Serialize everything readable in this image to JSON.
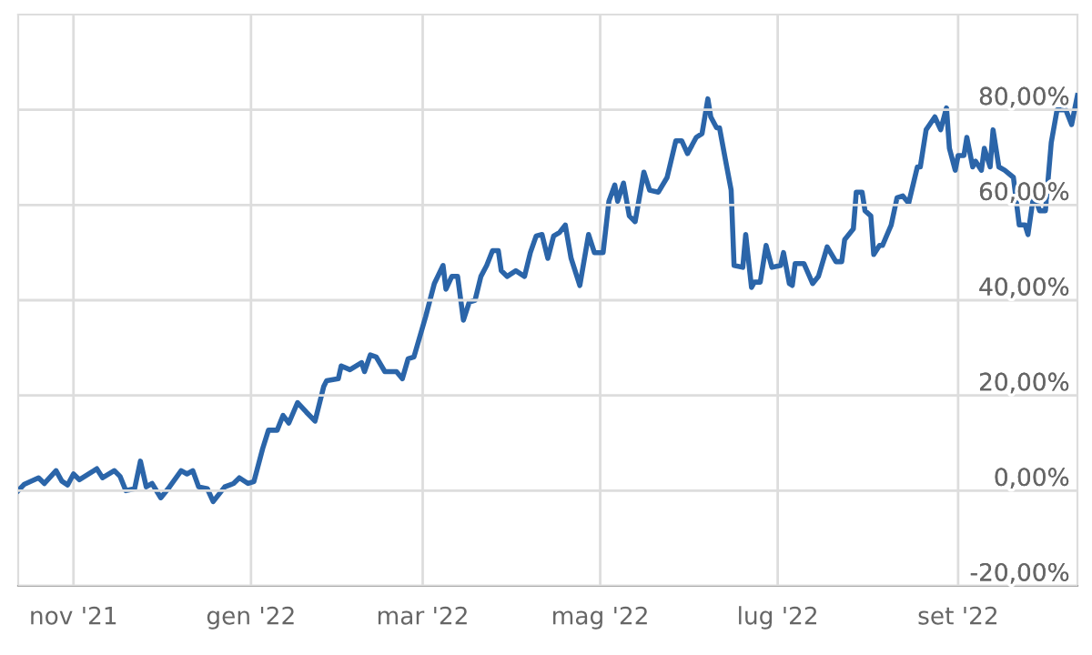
{
  "chart_data": {
    "type": "line",
    "color": "#2b65a9",
    "line_style": "solid",
    "marker": "none",
    "grid": true,
    "legend": false,
    "xlim": [
      "2021-10-13",
      "2022-10-12"
    ],
    "xticks": [
      {
        "value": "2021-11-01",
        "label": "nov '21"
      },
      {
        "value": "2022-01-01",
        "label": "gen '22"
      },
      {
        "value": "2022-03-01",
        "label": "mar '22"
      },
      {
        "value": "2022-05-01",
        "label": "mag '22"
      },
      {
        "value": "2022-07-01",
        "label": "lug '22"
      },
      {
        "value": "2022-09-01",
        "label": "set '22"
      }
    ],
    "ylim": [
      -20,
      100
    ],
    "yticks": [
      {
        "value": -20,
        "label": "-20,00%"
      },
      {
        "value": 0,
        "label": "0,00%"
      },
      {
        "value": 20,
        "label": "20,00%"
      },
      {
        "value": 40,
        "label": "40,00%"
      },
      {
        "value": 60,
        "label": "60,00%"
      },
      {
        "value": 80,
        "label": "80,00%"
      }
    ],
    "x": [
      "2021-10-13",
      "2021-10-15",
      "2021-10-20",
      "2021-10-22",
      "2021-10-26",
      "2021-10-28",
      "2021-10-30",
      "2021-11-01",
      "2021-11-03",
      "2021-11-08",
      "2021-11-09",
      "2021-11-11",
      "2021-11-15",
      "2021-11-17",
      "2021-11-19",
      "2021-11-22",
      "2021-11-24",
      "2021-11-26",
      "2021-11-28",
      "2021-12-01",
      "2021-12-04",
      "2021-12-08",
      "2021-12-10",
      "2021-12-12",
      "2021-12-14",
      "2021-12-17",
      "2021-12-19",
      "2021-12-23",
      "2021-12-26",
      "2021-12-28",
      "2021-12-31",
      "2022-01-02",
      "2022-01-05",
      "2022-01-07",
      "2022-01-10",
      "2022-01-12",
      "2022-01-14",
      "2022-01-17",
      "2022-01-20",
      "2022-01-23",
      "2022-01-26",
      "2022-01-27",
      "2022-01-31",
      "2022-02-01",
      "2022-02-04",
      "2022-02-08",
      "2022-02-09",
      "2022-02-11",
      "2022-02-13",
      "2022-02-16",
      "2022-02-20",
      "2022-02-22",
      "2022-02-24",
      "2022-02-26",
      "2022-03-02",
      "2022-03-05",
      "2022-03-08",
      "2022-03-09",
      "2022-03-11",
      "2022-03-13",
      "2022-03-15",
      "2022-03-17",
      "2022-03-19",
      "2022-03-21",
      "2022-03-23",
      "2022-03-25",
      "2022-03-27",
      "2022-03-28",
      "2022-03-30",
      "2022-04-02",
      "2022-04-05",
      "2022-04-07",
      "2022-04-09",
      "2022-04-11",
      "2022-04-13",
      "2022-04-15",
      "2022-04-17",
      "2022-04-19",
      "2022-04-21",
      "2022-04-24",
      "2022-04-27",
      "2022-04-29",
      "2022-05-02",
      "2022-05-04",
      "2022-05-06",
      "2022-05-07",
      "2022-05-09",
      "2022-05-11",
      "2022-05-13",
      "2022-05-16",
      "2022-05-18",
      "2022-05-21",
      "2022-05-24",
      "2022-05-27",
      "2022-05-29",
      "2022-05-31",
      "2022-06-03",
      "2022-06-05",
      "2022-06-07",
      "2022-06-08",
      "2022-06-10",
      "2022-06-11",
      "2022-06-13",
      "2022-06-15",
      "2022-06-16",
      "2022-06-19",
      "2022-06-20",
      "2022-06-22",
      "2022-06-23",
      "2022-06-25",
      "2022-06-27",
      "2022-06-29",
      "2022-07-02",
      "2022-07-03",
      "2022-07-05",
      "2022-07-06",
      "2022-07-07",
      "2022-07-10",
      "2022-07-13",
      "2022-07-15",
      "2022-07-18",
      "2022-07-21",
      "2022-07-23",
      "2022-07-24",
      "2022-07-27",
      "2022-07-28",
      "2022-07-30",
      "2022-07-31",
      "2022-08-02",
      "2022-08-03",
      "2022-08-05",
      "2022-08-06",
      "2022-08-09",
      "2022-08-11",
      "2022-08-13",
      "2022-08-15",
      "2022-08-18",
      "2022-08-19",
      "2022-08-21",
      "2022-08-24",
      "2022-08-26",
      "2022-08-28",
      "2022-08-29",
      "2022-08-31",
      "2022-09-01",
      "2022-09-03",
      "2022-09-04",
      "2022-09-06",
      "2022-09-07",
      "2022-09-09",
      "2022-09-10",
      "2022-09-12",
      "2022-09-13",
      "2022-09-15",
      "2022-09-17",
      "2022-09-20",
      "2022-09-22",
      "2022-09-24",
      "2022-09-25",
      "2022-09-27",
      "2022-09-29",
      "2022-10-01",
      "2022-10-03",
      "2022-10-05",
      "2022-10-08",
      "2022-10-10",
      "2022-10-12"
    ],
    "values": [
      0,
      1.3,
      2.7,
      1.5,
      4.2,
      2,
      1.2,
      3.5,
      2.3,
      4.2,
      4.6,
      2.7,
      4.2,
      3,
      0,
      0.4,
      6.2,
      0.8,
      1.5,
      -1.5,
      0.8,
      4.2,
      3.5,
      4.2,
      0.8,
      0.4,
      -2.3,
      0.8,
      1.5,
      2.7,
      1.5,
      1.9,
      8.8,
      12.7,
      12.7,
      15.8,
      14.2,
      18.5,
      16.5,
      14.6,
      21.9,
      23.1,
      23.5,
      26.2,
      25.4,
      26.9,
      25,
      28.5,
      28.1,
      25,
      25,
      23.5,
      27.7,
      28.1,
      36.5,
      43.5,
      47.3,
      42.3,
      45,
      45,
      35.8,
      39.6,
      40,
      45,
      47.3,
      50.4,
      50.4,
      46.2,
      45,
      46.2,
      45,
      50,
      53.5,
      53.8,
      48.8,
      53.5,
      54.2,
      55.8,
      48.8,
      43.1,
      53.8,
      50,
      50,
      60.8,
      64.2,
      60.8,
      64.6,
      57.7,
      56.5,
      66.9,
      63.1,
      62.7,
      65.8,
      73.5,
      73.5,
      70.8,
      74.2,
      75,
      82.3,
      78.5,
      76.2,
      76.2,
      69.6,
      63.1,
      47.3,
      46.9,
      53.8,
      42.7,
      43.8,
      43.8,
      51.5,
      46.9,
      47.3,
      50,
      43.5,
      43.1,
      47.7,
      47.7,
      43.5,
      45,
      51.2,
      48.1,
      48.1,
      52.7,
      55,
      62.7,
      62.7,
      58.8,
      57.7,
      49.6,
      51.5,
      51.5,
      55.8,
      61.5,
      61.9,
      60.4,
      68,
      68,
      75.8,
      78.5,
      75.8,
      80.4,
      71.9,
      67.3,
      70.4,
      70.4,
      74.2,
      68,
      69.2,
      67.3,
      71.9,
      68,
      75.8,
      68,
      67.3,
      65.8,
      55.8,
      55.8,
      53.8,
      62.3,
      58.8,
      58.8,
      73.1,
      80,
      80,
      76.9,
      83
    ]
  }
}
